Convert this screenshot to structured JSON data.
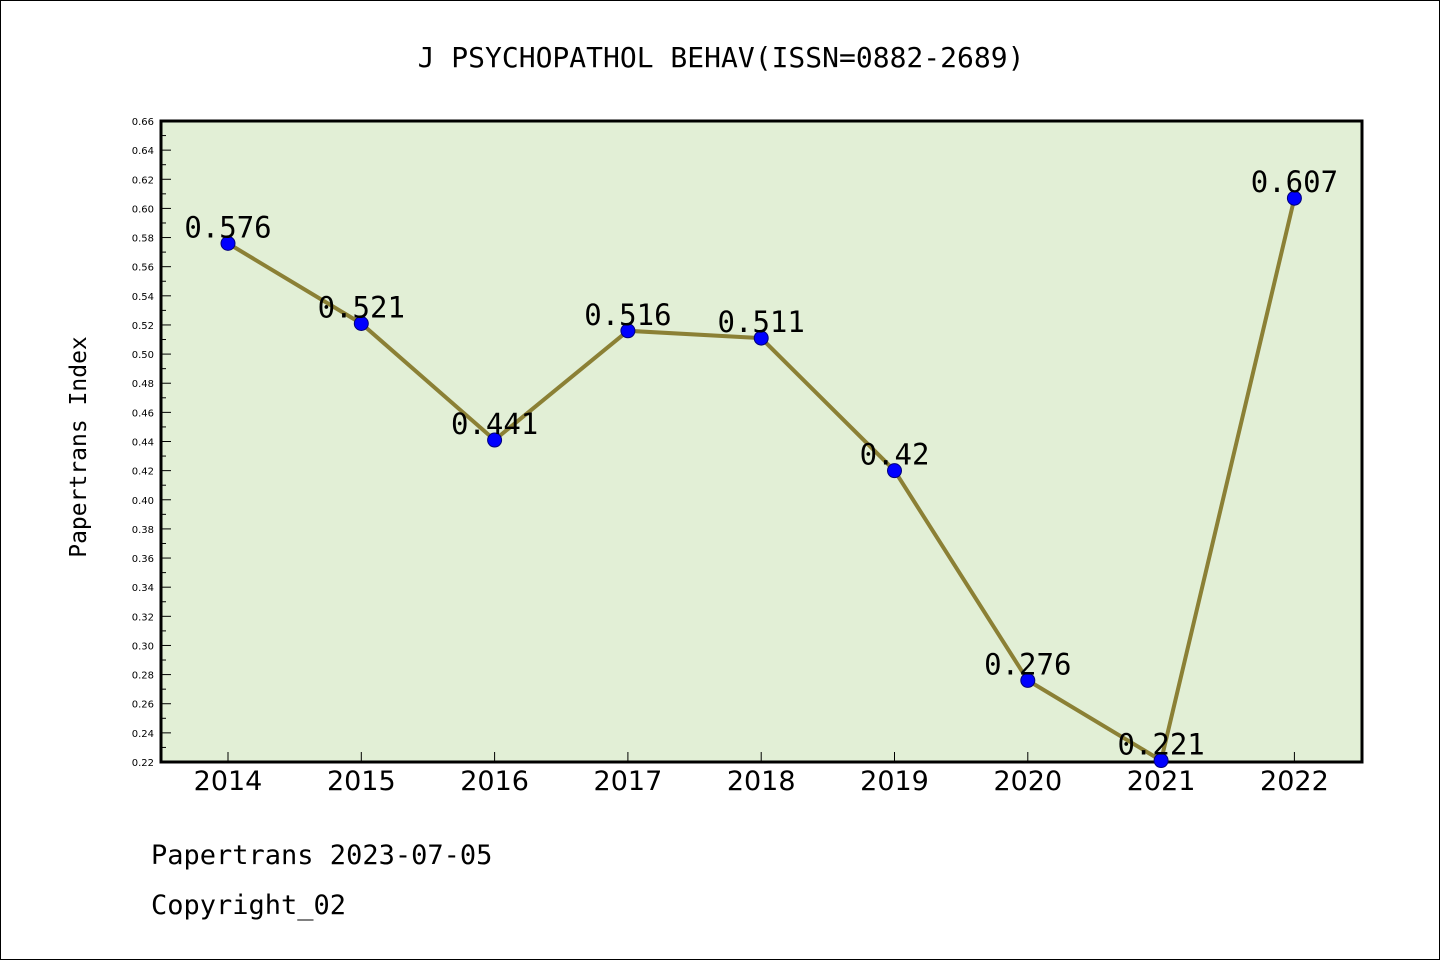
{
  "chart_data": {
    "type": "line",
    "title": "J PSYCHOPATHOL BEHAV(ISSN=0882-2689)",
    "xlabel": "",
    "ylabel": "Papertrans Index",
    "categories": [
      "2014",
      "2015",
      "2016",
      "2017",
      "2018",
      "2019",
      "2020",
      "2021",
      "2022"
    ],
    "values": [
      0.576,
      0.521,
      0.441,
      0.516,
      0.511,
      0.42,
      0.276,
      0.221,
      0.607
    ],
    "data_labels": [
      "0.576",
      "0.521",
      "0.441",
      "0.516",
      "0.511",
      "0.42",
      "0.276",
      "0.221",
      "0.607"
    ],
    "ylim": [
      0.22,
      0.66
    ],
    "yticks": [
      "0.22",
      "0.24",
      "0.26",
      "0.28",
      "0.30",
      "0.32",
      "0.34",
      "0.36",
      "0.38",
      "0.40",
      "0.42",
      "0.44",
      "0.46",
      "0.48",
      "0.50",
      "0.52",
      "0.54",
      "0.56",
      "0.58",
      "0.60",
      "0.62",
      "0.64",
      "0.66"
    ],
    "grid": false,
    "legend": "none",
    "colors": {
      "plot_background": "#e2efd6",
      "line": "#8b8035",
      "marker": "#0000ff"
    }
  },
  "footer": {
    "line1": "Papertrans 2023-07-05",
    "line2": "Copyright_02"
  }
}
